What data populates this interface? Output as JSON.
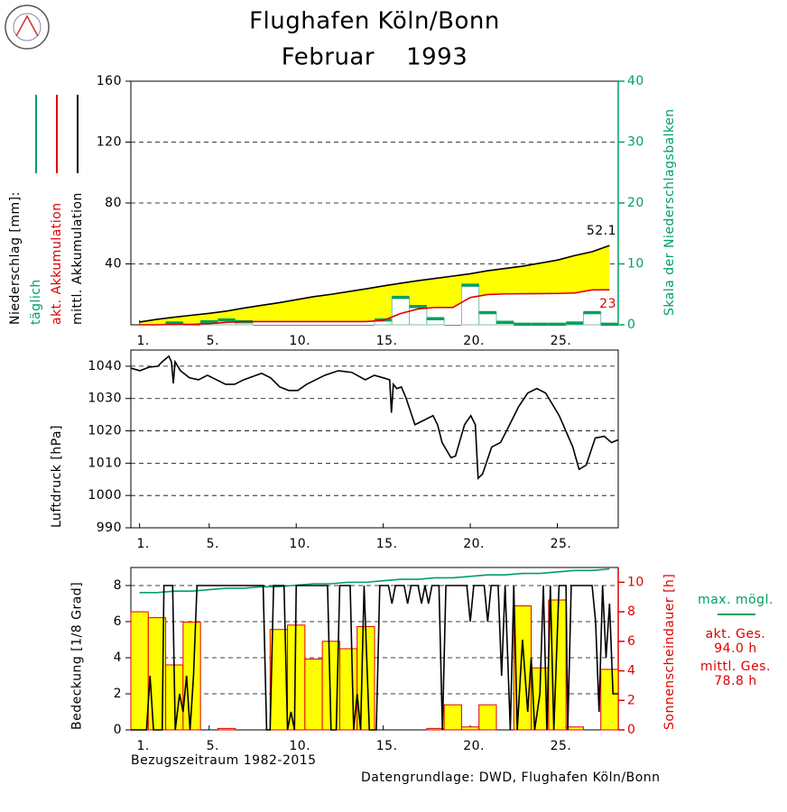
{
  "chart_data": [
    {
      "type": "combo",
      "title": "Flughafen Köln/Bonn",
      "subtitle": "Februar    1993",
      "legend_title": "Niederschlag [mm]:",
      "legend": "left",
      "y2label": "Skala der Niederschlagsbalken",
      "x": [
        1,
        2,
        3,
        4,
        5,
        6,
        7,
        8,
        9,
        10,
        11,
        12,
        13,
        14,
        15,
        16,
        17,
        18,
        19,
        20,
        21,
        22,
        23,
        24,
        25,
        26,
        27,
        28
      ],
      "xlim": [
        0.5,
        28.5
      ],
      "xticks": [
        {
          "value": 1,
          "label": "1."
        },
        {
          "value": 5,
          "label": "5."
        },
        {
          "value": 10,
          "label": "10."
        },
        {
          "value": 15,
          "label": "15."
        },
        {
          "value": 20,
          "label": "20."
        },
        {
          "value": 25,
          "label": "25."
        }
      ],
      "ylim": [
        0,
        160
      ],
      "yticks": [
        40,
        80,
        120,
        160
      ],
      "grid": true,
      "y2lim": [
        0,
        40
      ],
      "y2ticks": [
        0,
        10,
        20,
        30,
        40
      ],
      "y2_color": "#00a060",
      "series": [
        {
          "name": "täglich",
          "type": "bar",
          "axis": "y2",
          "color": "#00a060",
          "fill": "#ffffff",
          "outline": "#80c0a0",
          "values": [
            0,
            0,
            0.3,
            0,
            0.5,
            0.8,
            0.5,
            0,
            0,
            0,
            0,
            0,
            0,
            0,
            0.8,
            4.5,
            3.0,
            1.0,
            0,
            6.5,
            2.0,
            0.4,
            0.1,
            0.1,
            0.1,
            0.3,
            2.0,
            0.1
          ]
        },
        {
          "name": "akt. Akkumulation",
          "type": "line",
          "color": "#e00000",
          "area_color": "#ffffff",
          "label_last": "below",
          "values": [
            0,
            0,
            0.3,
            0.3,
            0.8,
            1.6,
            2.1,
            2.1,
            2.1,
            2.1,
            2.1,
            2.1,
            2.1,
            2.1,
            2.9,
            7.4,
            10.4,
            11.4,
            11.4,
            17.9,
            19.9,
            20.3,
            20.4,
            20.5,
            20.6,
            20.9,
            22.9,
            23.0
          ]
        },
        {
          "name": "mittl. Akkumulation",
          "type": "line",
          "color": "#000000",
          "area_color": "#ffff00",
          "label_last": "above",
          "values": [
            1.8,
            3.6,
            5.0,
            6.3,
            7.5,
            9.0,
            11.0,
            12.8,
            14.5,
            16.5,
            18.5,
            20.0,
            21.8,
            23.6,
            25.5,
            27.3,
            29.0,
            30.5,
            32.0,
            33.5,
            35.5,
            37.0,
            38.5,
            40.5,
            42.5,
            45.5,
            48.0,
            52.1
          ]
        }
      ]
    },
    {
      "type": "line",
      "ylabel": "Luftdruck [hPa]",
      "xlim": [
        0.5,
        28.5
      ],
      "xticks": [
        {
          "value": 1,
          "label": "1."
        },
        {
          "value": 5,
          "label": "5."
        },
        {
          "value": 10,
          "label": "10."
        },
        {
          "value": 15,
          "label": "15."
        },
        {
          "value": 20,
          "label": "20."
        },
        {
          "value": 25,
          "label": "25."
        }
      ],
      "ylim": [
        990,
        1045
      ],
      "yticks": [
        990,
        1000,
        1010,
        1020,
        1030,
        1040
      ],
      "grid": true,
      "series": [
        {
          "type": "line",
          "color": "#000000",
          "x": [
            0.5,
            1.02,
            1.54,
            2.05,
            2.31,
            2.68,
            2.83,
            2.94,
            3.04,
            3.35,
            3.87,
            4.39,
            4.9,
            5.42,
            5.94,
            6.46,
            6.98,
            8.01,
            8.53,
            9.05,
            9.57,
            10.09,
            10.6,
            11.12,
            11.64,
            12.42,
            13.19,
            13.97,
            14.49,
            15.01,
            15.37,
            15.47,
            15.58,
            15.78,
            16.04,
            16.3,
            16.82,
            17.34,
            17.86,
            18.12,
            18.38,
            18.89,
            19.15,
            19.67,
            20.03,
            20.29,
            20.45,
            20.71,
            21.23,
            21.74,
            22.26,
            22.78,
            23.3,
            23.82,
            24.33,
            25.11,
            25.89,
            26.25,
            26.66,
            27.18,
            27.7,
            28.11,
            28.48
          ],
          "values": [
            1039.4,
            1038.6,
            1039.7,
            1040,
            1041.4,
            1043.1,
            1041.4,
            1034.7,
            1041.4,
            1038.6,
            1036.4,
            1035.8,
            1037.2,
            1035.8,
            1034.4,
            1034.4,
            1035.8,
            1037.8,
            1036.4,
            1033.6,
            1032.5,
            1032.5,
            1034.4,
            1035.8,
            1037.2,
            1038.6,
            1038.1,
            1035.8,
            1037.2,
            1036.4,
            1035.8,
            1025.6,
            1034.4,
            1033.1,
            1033.6,
            1030.3,
            1021.9,
            1023.3,
            1024.7,
            1021.9,
            1016.4,
            1011.7,
            1012.2,
            1021.9,
            1024.7,
            1021.9,
            1005.3,
            1006.7,
            1015.0,
            1016.4,
            1021.9,
            1027.5,
            1031.7,
            1033.1,
            1031.7,
            1024.7,
            1015.0,
            1008.1,
            1009.4,
            1017.8,
            1018.3,
            1016.4,
            1017.2
          ]
        }
      ]
    },
    {
      "type": "combo",
      "ylabel": "Bedeckung [1/8 Grad]",
      "y2label": "Sonnenscheindauer [h]",
      "legend": "right",
      "x": [
        1,
        2,
        3,
        4,
        5,
        6,
        7,
        8,
        9,
        10,
        11,
        12,
        13,
        14,
        15,
        16,
        17,
        18,
        19,
        20,
        21,
        22,
        23,
        24,
        25,
        26,
        27,
        28
      ],
      "xlim": [
        0.5,
        28.5
      ],
      "xticks": [
        {
          "value": 1,
          "label": "1."
        },
        {
          "value": 5,
          "label": "5."
        },
        {
          "value": 10,
          "label": "10."
        },
        {
          "value": 15,
          "label": "15."
        },
        {
          "value": 20,
          "label": "20."
        },
        {
          "value": 25,
          "label": "25."
        }
      ],
      "ylim": [
        0,
        9
      ],
      "yticks": [
        0,
        2,
        4,
        6,
        8
      ],
      "grid": true,
      "y2lim": [
        0,
        11
      ],
      "y2ticks": [
        0,
        2,
        4,
        6,
        8,
        10
      ],
      "y2_color": "#e00000",
      "series": [
        {
          "type": "bar",
          "axis": "y2",
          "color": "#e00000",
          "fill": "#ffff00",
          "values": [
            8.0,
            7.6,
            4.4,
            7.3,
            0,
            0.1,
            0,
            0,
            6.8,
            7.1,
            4.8,
            6.0,
            5.5,
            7.0,
            0,
            0,
            0,
            0.1,
            1.7,
            0.2,
            1.7,
            0,
            8.4,
            4.2,
            8.8,
            0.2,
            0,
            4.1
          ]
        },
        {
          "name": "max. mögl.",
          "type": "line",
          "axis": "y2",
          "color": "#00a060",
          "values": [
            9.3,
            9.3,
            9.4,
            9.4,
            9.5,
            9.6,
            9.6,
            9.7,
            9.7,
            9.8,
            9.9,
            9.9,
            10.0,
            10.0,
            10.1,
            10.2,
            10.2,
            10.3,
            10.3,
            10.4,
            10.5,
            10.5,
            10.6,
            10.6,
            10.7,
            10.8,
            10.8,
            10.9
          ]
        },
        {
          "type": "line",
          "color": "#000000",
          "x": [
            0.5,
            1.4,
            1.6,
            1.8,
            2.3,
            2.4,
            2.9,
            3.05,
            3.3,
            3.5,
            3.7,
            3.9,
            4.1,
            4.3,
            8.1,
            8.3,
            8.5,
            8.7,
            9.3,
            9.5,
            9.7,
            9.9,
            10.0,
            11.8,
            12.0,
            12.3,
            12.5,
            13.1,
            13.3,
            13.5,
            13.7,
            13.9,
            14.2,
            14.6,
            14.8,
            15.3,
            15.5,
            15.7,
            16.2,
            16.4,
            16.6,
            17.0,
            17.2,
            17.4,
            17.6,
            17.8,
            18.2,
            18.4,
            18.6,
            19.8,
            20.0,
            20.2,
            20.8,
            21.0,
            21.2,
            21.6,
            21.8,
            22.0,
            22.3,
            22.5,
            22.7,
            23.0,
            23.3,
            23.5,
            23.7,
            24.0,
            24.2,
            24.4,
            24.6,
            24.8,
            25.1,
            25.5,
            25.6,
            25.8,
            27.0,
            27.2,
            27.4,
            27.6,
            27.8,
            28.0,
            28.2,
            28.5
          ],
          "values": [
            0,
            0,
            3,
            0,
            0,
            8,
            8,
            0,
            2,
            1,
            3,
            0,
            3,
            8,
            8,
            0,
            0,
            8,
            8,
            0,
            1,
            0,
            8,
            8,
            0,
            0,
            8,
            8,
            0,
            2,
            0,
            8,
            0,
            0,
            8,
            8,
            7,
            8,
            8,
            7,
            8,
            8,
            7,
            8,
            7,
            8,
            8,
            0,
            8,
            8,
            6,
            8,
            8,
            6,
            8,
            8,
            3,
            8,
            0,
            8,
            0,
            5,
            1,
            4,
            0,
            2,
            8,
            0,
            8,
            0,
            8,
            8,
            0,
            8,
            8,
            6,
            1,
            8,
            4,
            7,
            2,
            2
          ]
        }
      ],
      "totals": [
        {
          "label": "akt. Ges.",
          "value": "94.0 h"
        },
        {
          "label": "mittl. Ges.",
          "value": "78.8 h"
        }
      ],
      "reference_period": "Bezugszeitraum 1982-2015",
      "source": "Datengrundlage: DWD, Flughafen Köln/Bonn"
    }
  ]
}
